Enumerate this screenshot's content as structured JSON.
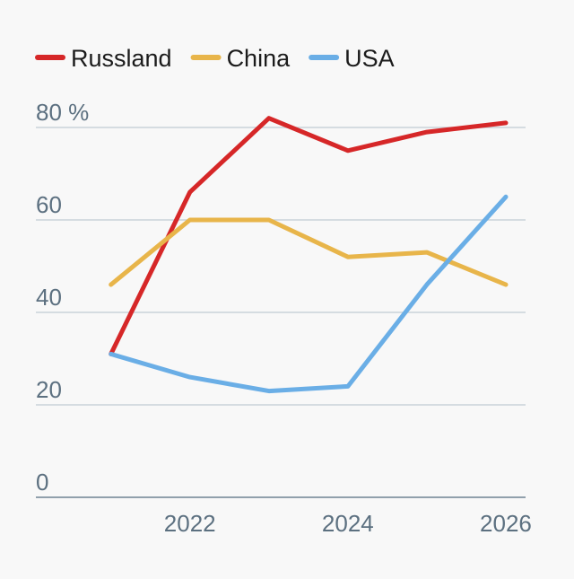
{
  "chart_data": {
    "type": "line",
    "title": "",
    "xlabel": "",
    "ylabel": "",
    "x": [
      2021,
      2022,
      2023,
      2024,
      2025,
      2026
    ],
    "x_ticks": [
      {
        "value": 2022,
        "label": "2022"
      },
      {
        "value": 2024,
        "label": "2024"
      },
      {
        "value": 2026,
        "label": "2026"
      }
    ],
    "y_ticks": [
      {
        "value": 0,
        "label": "0"
      },
      {
        "value": 20,
        "label": "20"
      },
      {
        "value": 40,
        "label": "40"
      },
      {
        "value": 60,
        "label": "60"
      },
      {
        "value": 80,
        "label": "80 %"
      }
    ],
    "xlim": [
      2020.05,
      2026.25
    ],
    "ylim": [
      0,
      80
    ],
    "grid": true,
    "legend_position": "top-left",
    "series": [
      {
        "name": "Russland",
        "color": "#d62728",
        "values": [
          31,
          66,
          82,
          75,
          79,
          81
        ]
      },
      {
        "name": "China",
        "color": "#e8b54a",
        "values": [
          46,
          60,
          60,
          52,
          53,
          46
        ]
      },
      {
        "name": "USA",
        "color": "#6aaee6",
        "values": [
          31,
          26,
          23,
          24,
          46,
          65
        ]
      }
    ]
  }
}
